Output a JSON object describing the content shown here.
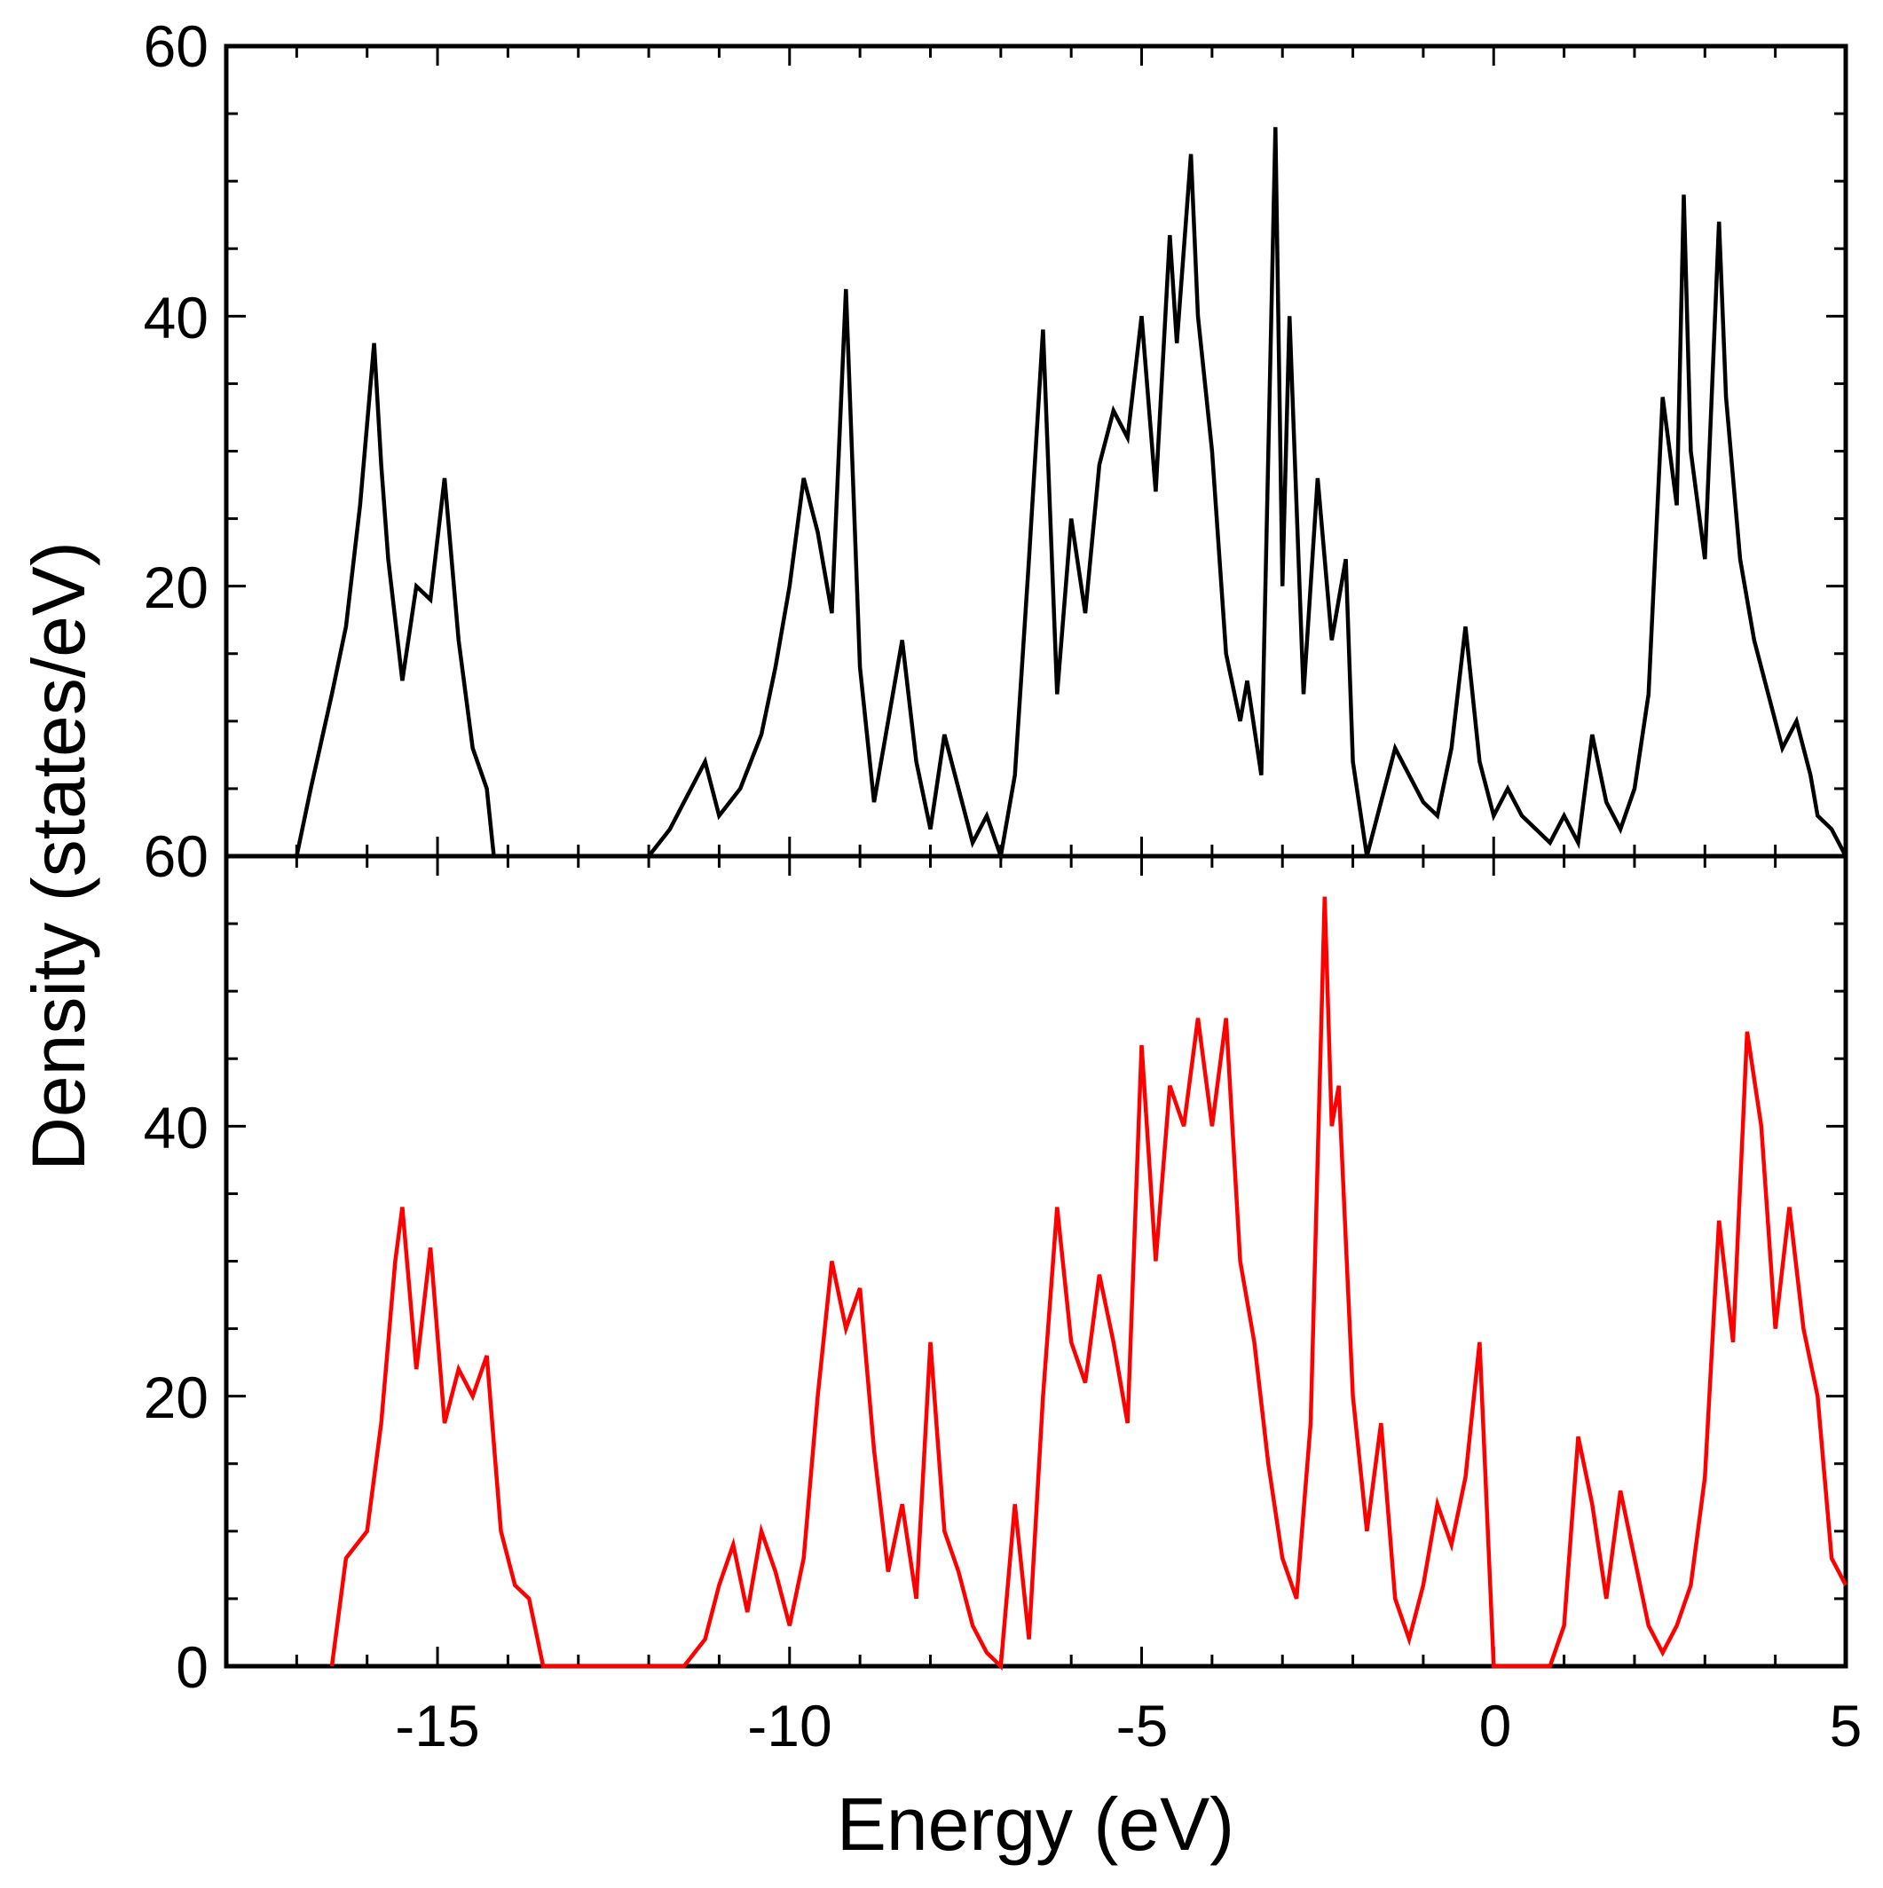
{
  "chart_data": {
    "type": "line",
    "xlabel": "Energy (eV)",
    "ylabel": "Density (states/eV)",
    "x_range": [
      -18,
      5
    ],
    "x_ticks": [
      -15,
      -10,
      -5,
      0,
      5
    ],
    "x_tick_labels": [
      "-15",
      "-10",
      "-5",
      "0",
      "5"
    ],
    "panels": [
      {
        "name": "top",
        "ylim": [
          0,
          60
        ],
        "y_ticks": [
          20,
          40,
          60
        ],
        "y_tick_labels": [
          "20",
          "40",
          "60"
        ],
        "baseline_label": "60",
        "series": [
          {
            "name": "top-dos",
            "color": "#000000",
            "x": [
              -17.0,
              -16.8,
              -16.5,
              -16.3,
              -16.1,
              -15.9,
              -15.8,
              -15.7,
              -15.5,
              -15.3,
              -15.1,
              -14.9,
              -14.7,
              -14.5,
              -14.3,
              -14.2,
              -13.8,
              -13.5,
              -13.0,
              -12.5,
              -12.0,
              -11.7,
              -11.5,
              -11.2,
              -11.0,
              -10.7,
              -10.4,
              -10.2,
              -10.0,
              -9.8,
              -9.6,
              -9.4,
              -9.2,
              -9.0,
              -8.8,
              -8.6,
              -8.4,
              -8.2,
              -8.0,
              -7.8,
              -7.6,
              -7.4,
              -7.2,
              -7.0,
              -6.8,
              -6.6,
              -6.4,
              -6.2,
              -6.0,
              -5.8,
              -5.6,
              -5.4,
              -5.2,
              -5.0,
              -4.8,
              -4.6,
              -4.5,
              -4.3,
              -4.2,
              -4.0,
              -3.8,
              -3.6,
              -3.5,
              -3.3,
              -3.1,
              -3.0,
              -2.9,
              -2.7,
              -2.5,
              -2.3,
              -2.1,
              -2.0,
              -1.8,
              -1.6,
              -1.4,
              -1.2,
              -1.0,
              -0.8,
              -0.6,
              -0.4,
              -0.2,
              0.0,
              0.2,
              0.4,
              0.6,
              0.8,
              1.0,
              1.2,
              1.4,
              1.6,
              1.8,
              2.0,
              2.2,
              2.4,
              2.6,
              2.7,
              2.8,
              3.0,
              3.2,
              3.3,
              3.5,
              3.7,
              3.9,
              4.1,
              4.3,
              4.5,
              4.6,
              4.8,
              5.0
            ],
            "y": [
              0,
              5,
              12,
              17,
              26,
              38,
              29,
              22,
              13,
              20,
              19,
              28,
              16,
              8,
              5,
              0,
              0,
              0,
              0,
              0,
              0,
              2,
              4,
              7,
              3,
              5,
              9,
              14,
              20,
              28,
              24,
              18,
              42,
              14,
              4,
              10,
              16,
              7,
              2,
              9,
              5,
              1,
              3,
              0,
              6,
              22,
              39,
              12,
              25,
              18,
              29,
              33,
              31,
              40,
              27,
              46,
              38,
              52,
              40,
              30,
              15,
              10,
              13,
              6,
              54,
              20,
              40,
              12,
              28,
              16,
              22,
              7,
              0,
              4,
              8,
              6,
              4,
              3,
              8,
              17,
              7,
              3,
              5,
              3,
              2,
              1,
              3,
              1,
              9,
              4,
              2,
              5,
              12,
              34,
              26,
              49,
              30,
              22,
              47,
              34,
              22,
              16,
              12,
              8,
              10,
              6,
              3,
              2,
              0
            ]
          }
        ]
      },
      {
        "name": "bottom",
        "ylim": [
          0,
          60
        ],
        "y_ticks": [
          0,
          20,
          40
        ],
        "y_tick_labels": [
          "0",
          "20",
          "40"
        ],
        "series": [
          {
            "name": "bottom-dos",
            "color": "#ff0000",
            "x": [
              -16.5,
              -16.3,
              -16.0,
              -15.8,
              -15.6,
              -15.5,
              -15.3,
              -15.1,
              -14.9,
              -14.7,
              -14.5,
              -14.3,
              -14.1,
              -13.9,
              -13.7,
              -13.5,
              -13.0,
              -12.0,
              -11.5,
              -11.2,
              -11.0,
              -10.8,
              -10.6,
              -10.4,
              -10.2,
              -10.0,
              -9.8,
              -9.6,
              -9.4,
              -9.2,
              -9.0,
              -8.8,
              -8.6,
              -8.4,
              -8.2,
              -8.0,
              -7.8,
              -7.6,
              -7.4,
              -7.2,
              -7.0,
              -6.8,
              -6.6,
              -6.4,
              -6.2,
              -6.0,
              -5.8,
              -5.6,
              -5.4,
              -5.2,
              -5.0,
              -4.8,
              -4.6,
              -4.4,
              -4.2,
              -4.0,
              -3.8,
              -3.6,
              -3.4,
              -3.2,
              -3.0,
              -2.8,
              -2.6,
              -2.4,
              -2.3,
              -2.2,
              -2.0,
              -1.8,
              -1.6,
              -1.4,
              -1.2,
              -1.0,
              -0.8,
              -0.6,
              -0.4,
              -0.2,
              0.0,
              0.2,
              0.4,
              0.6,
              0.8,
              1.0,
              1.2,
              1.4,
              1.6,
              1.8,
              2.0,
              2.2,
              2.4,
              2.6,
              2.8,
              3.0,
              3.2,
              3.4,
              3.6,
              3.8,
              4.0,
              4.2,
              4.4,
              4.6,
              4.8,
              5.0
            ],
            "y": [
              0,
              8,
              10,
              18,
              30,
              34,
              22,
              31,
              18,
              22,
              20,
              23,
              10,
              6,
              5,
              0,
              0,
              0,
              0,
              2,
              6,
              9,
              4,
              10,
              7,
              3,
              8,
              20,
              30,
              25,
              28,
              16,
              7,
              12,
              5,
              24,
              10,
              7,
              3,
              1,
              0,
              12,
              2,
              20,
              34,
              24,
              21,
              29,
              24,
              18,
              46,
              30,
              43,
              40,
              48,
              40,
              48,
              30,
              24,
              15,
              8,
              5,
              18,
              57,
              40,
              43,
              20,
              10,
              18,
              5,
              2,
              6,
              12,
              9,
              14,
              24,
              0,
              0,
              0,
              0,
              0,
              3,
              17,
              12,
              5,
              13,
              8,
              3,
              1,
              3,
              6,
              14,
              33,
              24,
              47,
              40,
              25,
              34,
              25,
              20,
              8,
              6
            ]
          }
        ]
      }
    ]
  }
}
